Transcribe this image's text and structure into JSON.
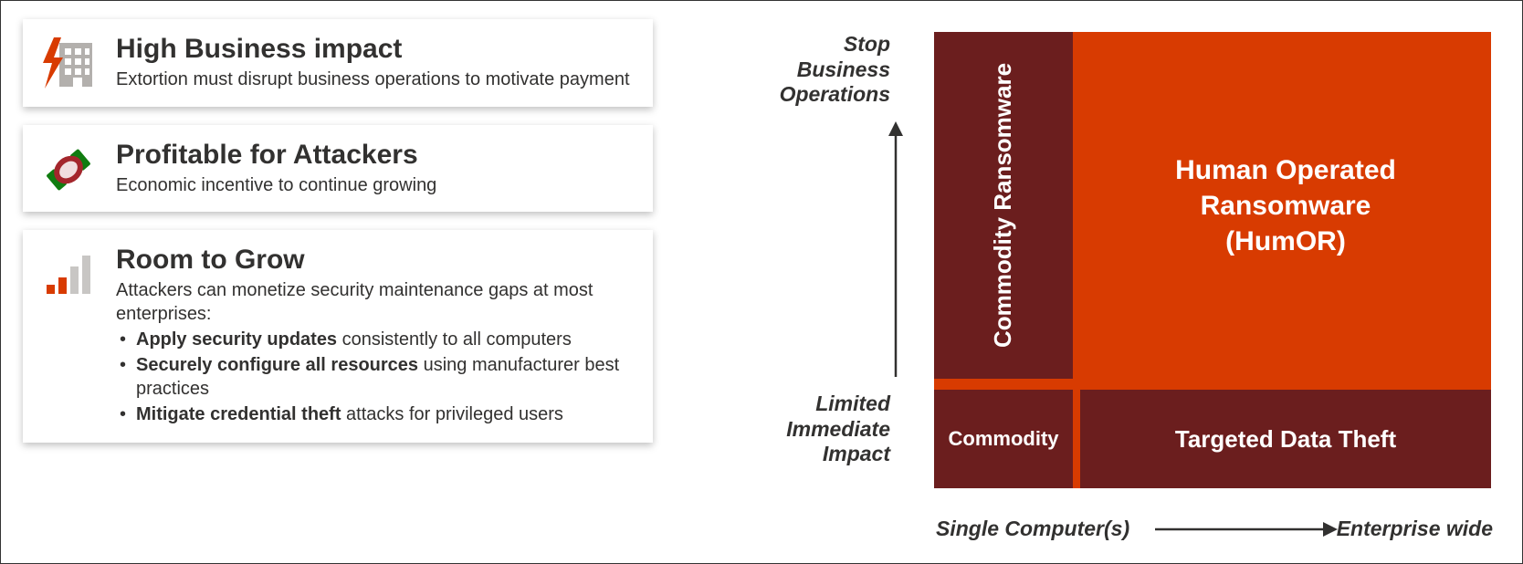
{
  "cards": [
    {
      "title": "High Business impact",
      "desc": "Extortion must disrupt business operations to motivate payment"
    },
    {
      "title": "Profitable for Attackers",
      "desc": "Economic incentive to continue growing"
    },
    {
      "title": "Room to Grow",
      "desc_intro": "Attackers can monetize security maintenance gaps at most enterprises:",
      "bullets": [
        {
          "bold": "Apply security updates",
          "rest": " consistently to all computers"
        },
        {
          "bold": "Securely configure all resources",
          "rest": " using manufacturer best practices"
        },
        {
          "bold": "Mitigate credential theft",
          "rest": " attacks for privileged users"
        }
      ]
    }
  ],
  "chart": {
    "type": "quadrant",
    "y_axis_top": "Stop Business Operations",
    "y_axis_bottom": "Limited Immediate Impact",
    "x_axis_left": "Single Computer(s)",
    "x_axis_right": "Enterprise wide",
    "quadrants": {
      "tl": {
        "label": "Commodity Ransomware",
        "bg": "#6b1e1e",
        "fg": "#ffffff"
      },
      "tr": {
        "label_line1": "Human Operated",
        "label_line2": "Ransomware",
        "label_line3": "(HumOR)",
        "bg": "#d83b01",
        "fg": "#ffffff"
      },
      "bl": {
        "label": "Commodity",
        "bg": "#6b1e1e",
        "fg": "#ffffff"
      },
      "br": {
        "label": "Targeted Data Theft",
        "bg": "#6b1e1e",
        "fg": "#ffffff"
      }
    },
    "gap_color": "#d83b01",
    "axis_color": "#323130",
    "background": "#ffffff"
  },
  "colors": {
    "orange": "#d83b01",
    "darkred": "#a4262c",
    "building_gray": "#b3b0ad",
    "bar_gray": "#c8c6c4",
    "green": "#107c10",
    "text": "#323130"
  }
}
